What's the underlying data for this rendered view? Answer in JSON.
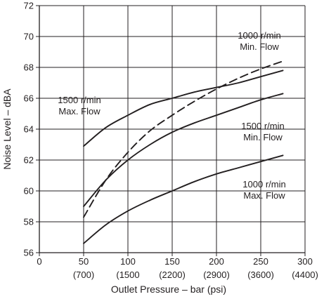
{
  "chart_data": {
    "type": "line",
    "xlabel": "Outlet Pressure – bar (psi)",
    "ylabel": "Noise Level – dBA",
    "xlim": [
      0,
      300
    ],
    "ylim": [
      56,
      72
    ],
    "grid": true,
    "x_ticks": [
      {
        "value": 0,
        "label": "0",
        "sub": ""
      },
      {
        "value": 50,
        "label": "50",
        "sub": "(700)"
      },
      {
        "value": 100,
        "label": "100",
        "sub": "(1500"
      },
      {
        "value": 150,
        "label": "150",
        "sub": "(2200)"
      },
      {
        "value": 200,
        "label": "200",
        "sub": "(2900)"
      },
      {
        "value": 250,
        "label": "250",
        "sub": "(3600)"
      },
      {
        "value": 300,
        "label": "300",
        "sub": "(4400)"
      }
    ],
    "y_ticks": [
      56,
      58,
      60,
      62,
      64,
      66,
      68,
      70,
      72
    ],
    "series": [
      {
        "label_lines": [
          "1500 r/min",
          "Max. Flow"
        ],
        "style": "solid",
        "x": [
          50,
          75,
          100,
          125,
          150,
          175,
          200,
          225,
          250,
          275
        ],
        "y": [
          62.9,
          64.1,
          64.9,
          65.6,
          66.0,
          66.4,
          66.7,
          67.0,
          67.4,
          67.8
        ]
      },
      {
        "label_lines": [
          "1000 r/min",
          "Min. Flow"
        ],
        "style": "dashed",
        "x": [
          50,
          75,
          100,
          125,
          150,
          175,
          200,
          225,
          250,
          275
        ],
        "y": [
          58.3,
          60.7,
          62.5,
          63.9,
          64.9,
          65.8,
          66.6,
          67.3,
          67.9,
          68.4
        ]
      },
      {
        "label_lines": [
          "1500 r/min",
          "Min. Flow"
        ],
        "style": "solid",
        "x": [
          50,
          75,
          100,
          125,
          150,
          175,
          200,
          225,
          250,
          275
        ],
        "y": [
          59.0,
          60.7,
          62.0,
          63.0,
          63.8,
          64.4,
          64.9,
          65.4,
          65.9,
          66.3
        ]
      },
      {
        "label_lines": [
          "1000 r/min",
          "Max. Flow"
        ],
        "style": "solid",
        "x": [
          50,
          75,
          100,
          125,
          150,
          175,
          200,
          225,
          250,
          275
        ],
        "y": [
          56.6,
          57.8,
          58.7,
          59.4,
          60.0,
          60.6,
          61.1,
          61.5,
          61.9,
          62.3
        ]
      }
    ]
  }
}
